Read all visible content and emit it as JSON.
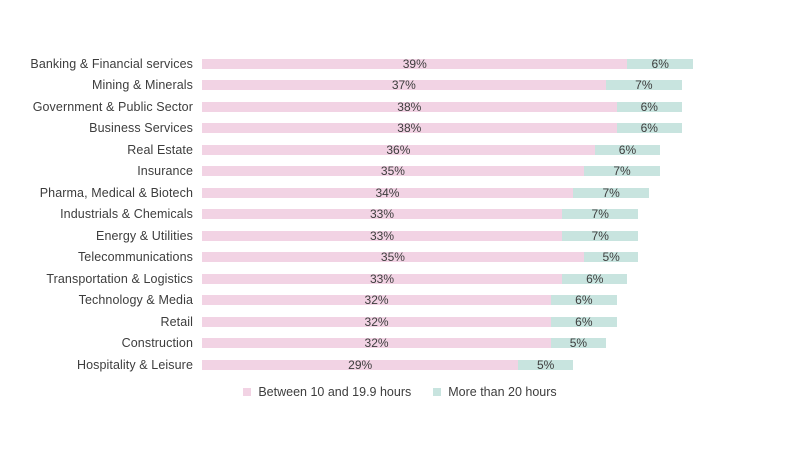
{
  "colors": {
    "background": "#FFFFFF",
    "text": "#3D3D3D",
    "pink": "#F2D3E4",
    "teal": "#C8E4DF"
  },
  "chart_data": {
    "type": "bar",
    "orientation": "horizontal",
    "stacked": true,
    "grid": false,
    "axes_visible": false,
    "legend_position": "bottom",
    "value_suffix": "%",
    "categories": [
      "Banking & Financial services",
      "Mining & Minerals",
      "Government & Public Sector",
      "Business Services",
      "Real Estate",
      "Insurance",
      "Pharma, Medical & Biotech",
      "Industrials & Chemicals",
      "Energy & Utilities",
      "Telecommunications",
      "Transportation & Logistics",
      "Technology & Media",
      "Retail",
      "Construction",
      "Hospitality & Leisure"
    ],
    "series": [
      {
        "name": "Between 10 and 19.9 hours",
        "color": "#F2D3E4",
        "values": [
          39,
          37,
          38,
          38,
          36,
          35,
          34,
          33,
          33,
          35,
          33,
          32,
          32,
          32,
          29
        ]
      },
      {
        "name": "More than 20 hours",
        "color": "#C8E4DF",
        "values": [
          6,
          7,
          6,
          6,
          6,
          7,
          7,
          7,
          7,
          5,
          6,
          6,
          6,
          5,
          5
        ]
      }
    ]
  }
}
